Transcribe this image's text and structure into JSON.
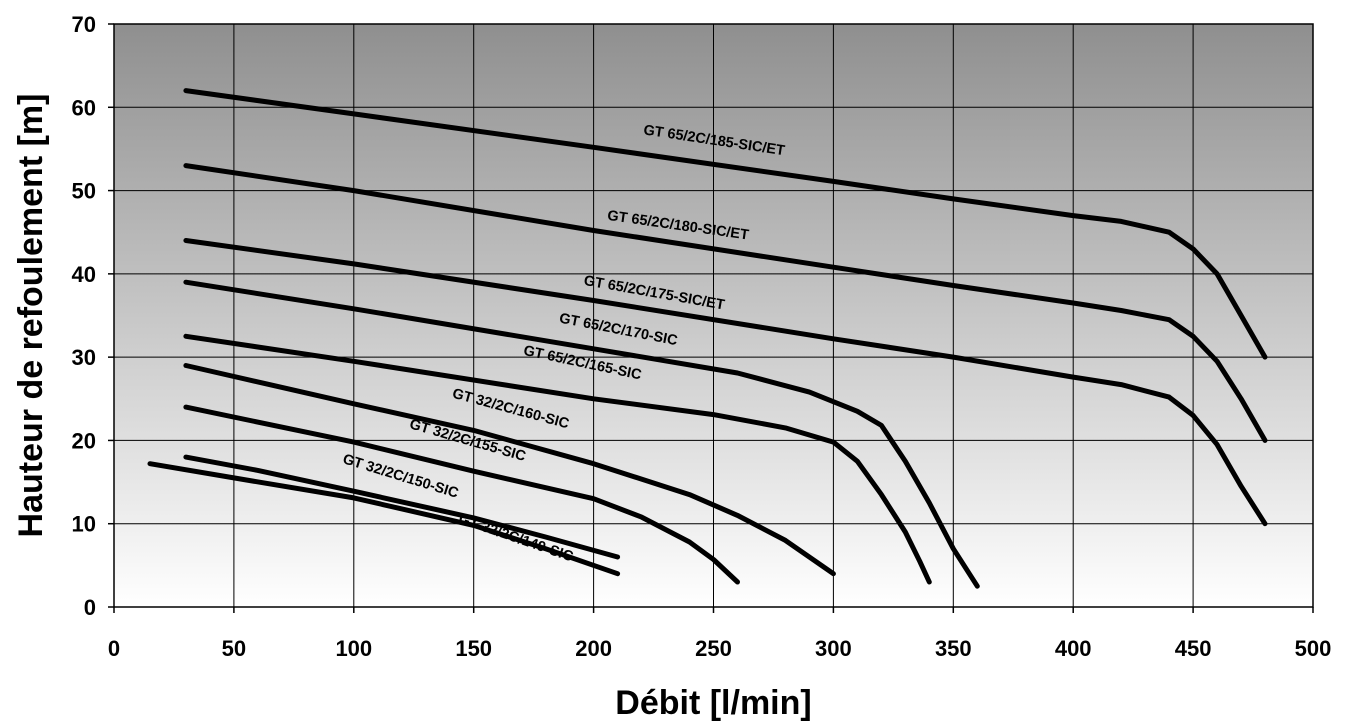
{
  "chart_data": {
    "type": "line",
    "title": "",
    "xlabel": "Débit [l/min]",
    "ylabel": "Hauteur de refoulement [m]",
    "xlim": [
      0,
      500
    ],
    "ylim": [
      0,
      70
    ],
    "xticks": [
      "0",
      "50",
      "100",
      "150",
      "200",
      "250",
      "300",
      "350",
      "400",
      "450",
      "500"
    ],
    "yticks": [
      "0",
      "10",
      "20",
      "30",
      "40",
      "50",
      "60",
      "70"
    ],
    "grid": true,
    "background": "gradient dark gray (top) to white (bottom)",
    "line_color": "#000000",
    "series": [
      {
        "name": "GT 65/2C/185-SIC/ET",
        "x": [
          30,
          100,
          200,
          300,
          350,
          400,
          420,
          440,
          450,
          460,
          470,
          480
        ],
        "y": [
          62,
          59.2,
          55.2,
          51.1,
          49,
          47,
          46.3,
          45,
          43,
          40,
          35,
          30
        ]
      },
      {
        "name": "GT 65/2C/180-SIC/ET",
        "x": [
          30,
          100,
          200,
          300,
          350,
          400,
          420,
          440,
          450,
          460,
          470,
          480
        ],
        "y": [
          53,
          50,
          45.2,
          40.8,
          38.6,
          36.5,
          35.6,
          34.5,
          32.5,
          29.5,
          25,
          20
        ]
      },
      {
        "name": "GT 65/2C/175-SIC/ET",
        "x": [
          30,
          100,
          200,
          300,
          350,
          400,
          420,
          440,
          450,
          460,
          470,
          480
        ],
        "y": [
          44,
          41.2,
          36.8,
          32.2,
          30,
          27.6,
          26.7,
          25.2,
          23,
          19.5,
          14.5,
          10
        ]
      },
      {
        "name": "GT 65/2C/170-SIC",
        "x": [
          30,
          100,
          200,
          260,
          290,
          310,
          320,
          330,
          340,
          350,
          360
        ],
        "y": [
          39,
          35.8,
          31,
          28.1,
          25.8,
          23.5,
          21.8,
          17.5,
          12.5,
          7,
          2.5
        ]
      },
      {
        "name": "GT 65/2C/165-SIC",
        "x": [
          30,
          100,
          200,
          250,
          280,
          300,
          310,
          320,
          330,
          336,
          340
        ],
        "y": [
          32.5,
          29.5,
          25,
          23.1,
          21.5,
          19.8,
          17.5,
          13.5,
          9,
          5.5,
          3
        ]
      },
      {
        "name": "GT 32/2C/160-SIC",
        "x": [
          30,
          100,
          150,
          200,
          240,
          260,
          280,
          300
        ],
        "y": [
          29,
          24.4,
          21.2,
          17.2,
          13.5,
          11,
          8,
          4
        ]
      },
      {
        "name": "GT 32/2C/155-SIC",
        "x": [
          30,
          100,
          150,
          200,
          220,
          240,
          250,
          260
        ],
        "y": [
          24,
          19.8,
          16.3,
          13,
          10.8,
          7.8,
          5.7,
          3
        ]
      },
      {
        "name": "GT 32/2C/150-SIC",
        "x": [
          30,
          60,
          100,
          150,
          180,
          210
        ],
        "y": [
          18,
          16.4,
          13.9,
          10.7,
          8.4,
          6
        ]
      },
      {
        "name": "GT 32/2C/149-SIC",
        "x": [
          15,
          50,
          100,
          150,
          180,
          210
        ],
        "y": [
          17.2,
          15.5,
          13.1,
          9.8,
          7,
          4
        ]
      }
    ]
  }
}
